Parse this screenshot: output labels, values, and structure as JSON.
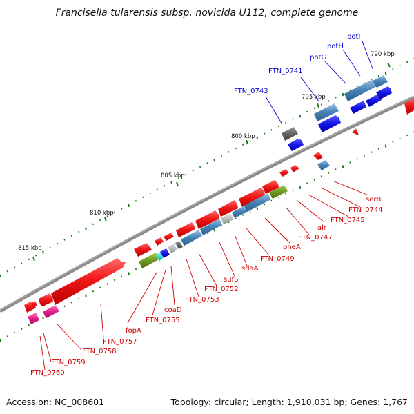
{
  "title": "Francisella tularensis subsp. novicida U112, complete genome",
  "footer": {
    "accession": "Accession: NC_008601",
    "summary": "Topology: circular; Length: 1,910,031 bp; Genes: 1,767"
  },
  "colors": {
    "backbone": "#777777",
    "tick": "#1a7a1a",
    "forward_gene": "#e21a1a",
    "reverse_gene": "#4a86b8",
    "rna_blue": "#1717e0",
    "label_forward": "#0000cc",
    "label_reverse": "#cc0000",
    "rna_olive": "#6d9a25",
    "pseudo_grey": "#bbbbbb",
    "pink": "#e0208a",
    "cyan": "#19e6f0",
    "dark_grey": "#666666"
  },
  "position_markers": [
    {
      "label": "790 kbp",
      "kbp": 790
    },
    {
      "label": "795 kbp",
      "kbp": 795
    },
    {
      "label": "800 kbp",
      "kbp": 800
    },
    {
      "label": "805 kbp",
      "kbp": 805
    },
    {
      "label": "810 kbp",
      "kbp": 810
    },
    {
      "label": "815 kbp",
      "kbp": 815
    }
  ],
  "genes_upper": [
    {
      "name": "potI",
      "color_key": "label_forward"
    },
    {
      "name": "potH",
      "color_key": "label_forward"
    },
    {
      "name": "potG",
      "color_key": "label_forward"
    },
    {
      "name": "FTN_0741",
      "color_key": "label_forward"
    },
    {
      "name": "FTN_0743",
      "color_key": "label_forward"
    }
  ],
  "genes_lower": [
    {
      "name": "serB"
    },
    {
      "name": "FTN_0744"
    },
    {
      "name": "FTN_0745"
    },
    {
      "name": "alr"
    },
    {
      "name": "FTN_0747"
    },
    {
      "name": "pheA"
    },
    {
      "name": "FTN_0749"
    },
    {
      "name": "sdaA"
    },
    {
      "name": "sufS"
    },
    {
      "name": "FTN_0752"
    },
    {
      "name": "FTN_0753"
    },
    {
      "name": "coaD"
    },
    {
      "name": "FTN_0755"
    },
    {
      "name": "fopA"
    },
    {
      "name": "FTN_0757"
    },
    {
      "name": "FTN_0758"
    },
    {
      "name": "FTN_0759"
    },
    {
      "name": "FTN_0760"
    }
  ]
}
